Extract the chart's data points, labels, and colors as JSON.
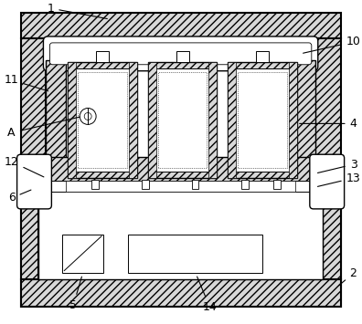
{
  "bg_color": "#ffffff",
  "line_color": "#000000",
  "figsize": [
    3.96,
    3.55
  ],
  "dpi": 100
}
